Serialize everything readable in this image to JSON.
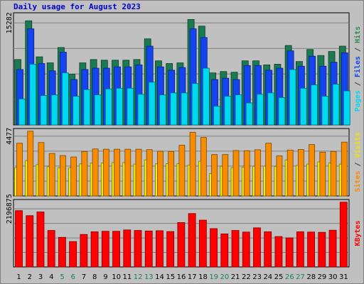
{
  "chart_data": {
    "type": "bar",
    "title": "Daily usage for August 2023",
    "days": [
      "1",
      "2",
      "3",
      "4",
      "5",
      "6",
      "7",
      "8",
      "9",
      "10",
      "11",
      "12",
      "13",
      "14",
      "15",
      "16",
      "17",
      "18",
      "19",
      "20",
      "21",
      "22",
      "23",
      "24",
      "25",
      "26",
      "27",
      "28",
      "29",
      "30",
      "31"
    ],
    "weekend_days": [
      "5",
      "6",
      "12",
      "13",
      "19",
      "20",
      "26",
      "27"
    ],
    "panels": [
      {
        "id": "top",
        "ytick_label": "15282",
        "ytick_value": 15282,
        "ymax": 16800,
        "legend": [
          {
            "text": "Pages",
            "color": "#00d8f0"
          },
          {
            "text": " / ",
            "color": "#404040"
          },
          {
            "text": "Files",
            "color": "#1444f0"
          },
          {
            "text": " / ",
            "color": "#404040"
          },
          {
            "text": "Hits",
            "color": "#2e8b57"
          }
        ],
        "series": [
          {
            "name": "Hits",
            "color": "#1a7a50",
            "values": [
              9800,
              15600,
              10200,
              9300,
              11600,
              7600,
              9300,
              9800,
              9700,
              9700,
              9700,
              9800,
              12900,
              9600,
              9200,
              9300,
              15800,
              14800,
              7800,
              8000,
              7900,
              9600,
              9600,
              9000,
              9100,
              11900,
              9500,
              11300,
              10400,
              11000,
              11800
            ]
          },
          {
            "name": "Files",
            "color": "#1444f0",
            "values": [
              8300,
              14400,
              9200,
              8100,
              10900,
              6800,
              8300,
              8500,
              8500,
              8700,
              8700,
              9000,
              11800,
              8700,
              8200,
              8600,
              14400,
              13100,
              6800,
              7000,
              6800,
              8900,
              8900,
              8200,
              8500,
              11100,
              8800,
              10300,
              8800,
              9400,
              10800
            ]
          },
          {
            "name": "Pages",
            "color": "#00d8f0",
            "values": [
              3900,
              9100,
              4400,
              4500,
              7800,
              4300,
              5300,
              4500,
              5400,
              5500,
              5500,
              4600,
              6400,
              4500,
              4800,
              4800,
              6200,
              8500,
              2800,
              4300,
              4500,
              3300,
              4600,
              4800,
              4100,
              8300,
              5500,
              6000,
              4300,
              6100,
              5100
            ]
          }
        ]
      },
      {
        "id": "middle",
        "ytick_label": "4477",
        "ytick_value": 4477,
        "ymax": 5050,
        "legend": [
          {
            "text": "Sites",
            "color": "#f88c00"
          },
          {
            "text": " / ",
            "color": "#404040"
          },
          {
            "text": "Visits",
            "color": "#f0e000"
          }
        ],
        "series": [
          {
            "name": "Visits",
            "color": "#f8f000",
            "values": [
              2110,
              2650,
              2350,
              2190,
              2120,
              2110,
              2400,
              2450,
              2460,
              2500,
              2500,
              2390,
              2700,
              2400,
              2410,
              2410,
              2320,
              2600,
              1680,
              2220,
              2110,
              2160,
              2220,
              2230,
              2210,
              2700,
              2290,
              2390,
              2550,
              2460,
              2390
            ]
          },
          {
            "name": "Sites",
            "color": "#f88c00",
            "values": [
              3950,
              4850,
              4000,
              3180,
              3020,
              2920,
              3330,
              3520,
              3500,
              3500,
              3500,
              3500,
              3470,
              3350,
              3330,
              3800,
              4770,
              4380,
              3100,
              3100,
              3400,
              3390,
              3460,
              3950,
              3000,
              3440,
              3480,
              3850,
              3280,
              3330,
              4030
            ]
          }
        ]
      },
      {
        "id": "bottom",
        "ytick_label": "2196875",
        "ytick_value": 2196875,
        "ymax": 2550000,
        "legend": [
          {
            "text": "KBytes",
            "color": "#ff0000"
          }
        ],
        "series": [
          {
            "name": "KBytes",
            "color": "#ff0000",
            "values": [
              2130000,
              1940000,
              2080000,
              1380000,
              1120000,
              960000,
              1230000,
              1330000,
              1350000,
              1350000,
              1400000,
              1380000,
              1360000,
              1370000,
              1340000,
              1680000,
              2020000,
              1770000,
              1450000,
              1250000,
              1380000,
              1320000,
              1480000,
              1330000,
              1150000,
              1100000,
              1330000,
              1320000,
              1310000,
              1390000,
              2450000
            ]
          }
        ]
      }
    ]
  }
}
